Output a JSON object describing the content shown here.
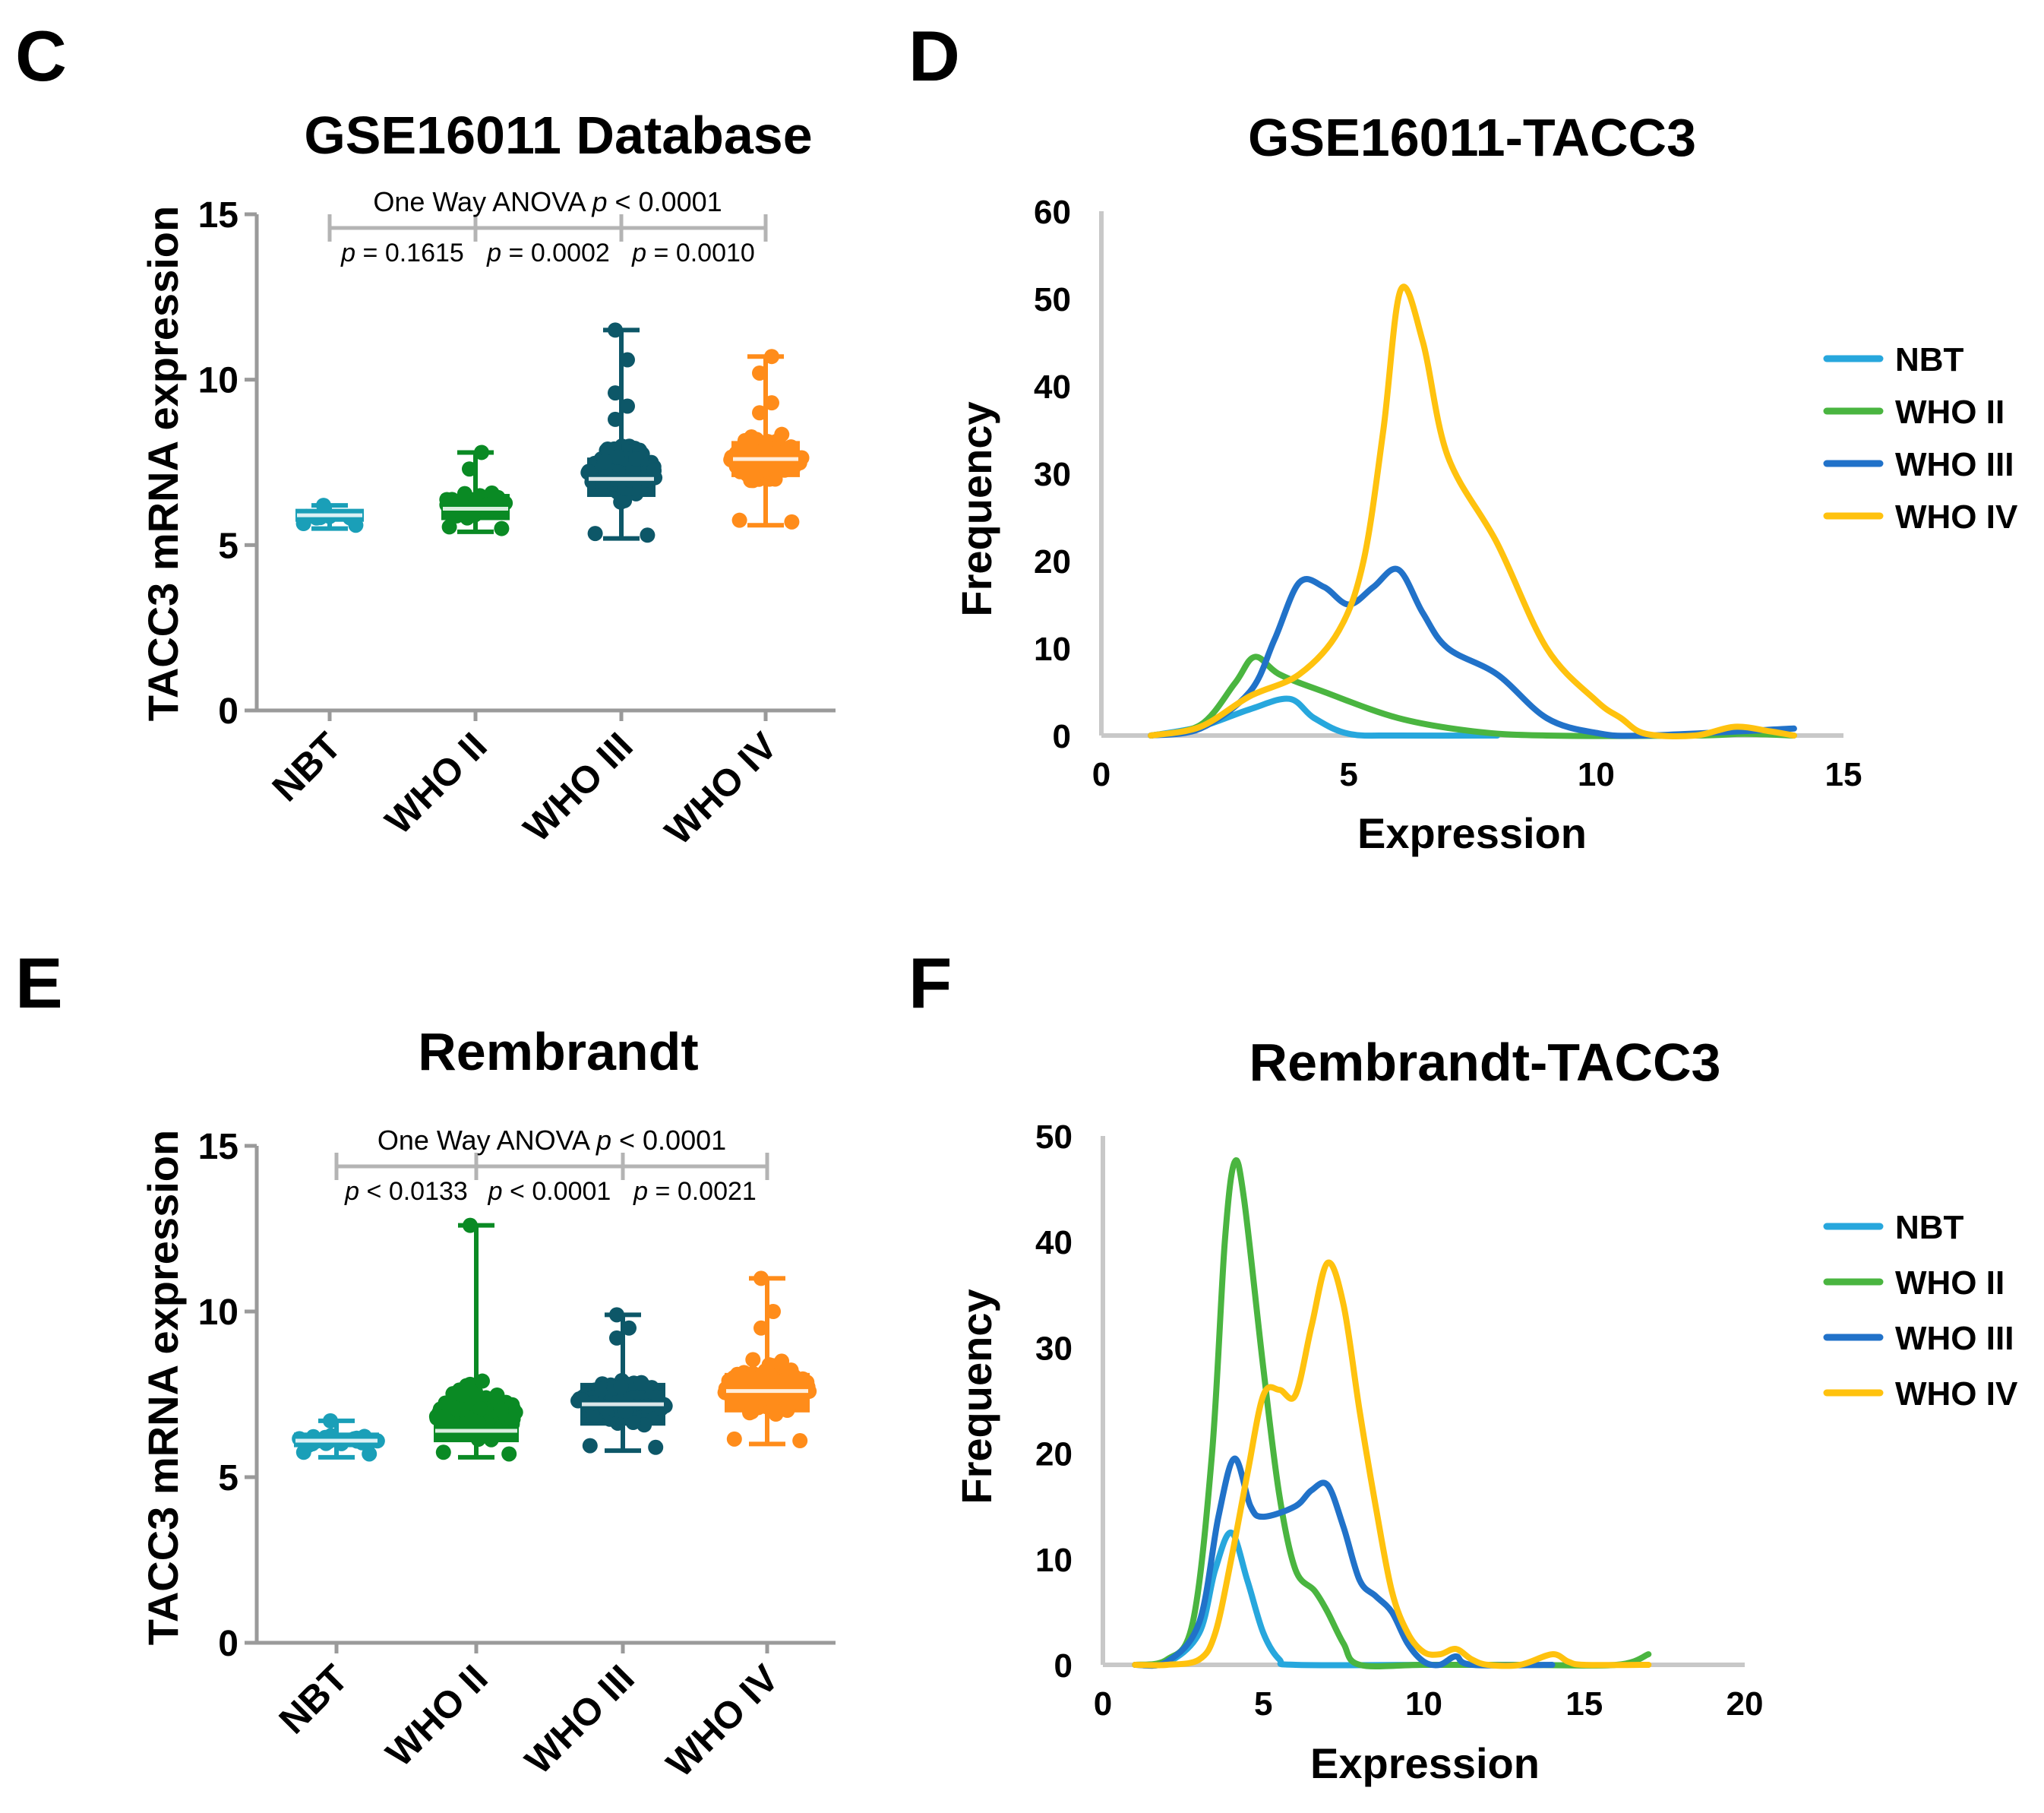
{
  "colors": {
    "axis": "#9a9a9a",
    "text": "#000000",
    "nbt_box": "#1a9fb8",
    "who2_box": "#0a8a24",
    "who3_box": "#0d5768",
    "who4_box": "#ff8c1a",
    "nbt_line": "#27a7dd",
    "who2_line": "#4ab540",
    "who3_line": "#2172c9",
    "who4_line": "#ffc20e"
  },
  "panel_labels": [
    "C",
    "D",
    "E",
    "F"
  ],
  "chart_data": [
    {
      "type": "box",
      "panel": "C",
      "title": "GSE16011 Database",
      "ylabel": "TACC3 mRNA expression",
      "ylim": [
        0,
        15
      ],
      "yticks": [
        "0",
        "5",
        "10",
        "15"
      ],
      "categories": [
        "NBT",
        "WHO II",
        "WHO III",
        "WHO IV"
      ],
      "anova": {
        "prefix": "One Way ANOVA ",
        "p": "p",
        "suffix": " < 0.0001"
      },
      "pairwise": [
        {
          "p": "p",
          "text": " = 0.1615"
        },
        {
          "p": "p",
          "text": " = 0.0002"
        },
        {
          "p": "p",
          "text": " = 0.0010"
        }
      ],
      "series": [
        {
          "name": "NBT",
          "color": "#1a9fb8",
          "min": 5.5,
          "q1": 5.75,
          "median": 5.9,
          "q3": 6.05,
          "max": 6.2,
          "n": 8,
          "max_outliers": [
            6.2
          ]
        },
        {
          "name": "WHO II",
          "color": "#0a8a24",
          "min": 5.4,
          "q1": 5.8,
          "median": 6.1,
          "q3": 6.5,
          "max": 7.8,
          "n": 40,
          "max_outliers": [
            7.3,
            7.8
          ]
        },
        {
          "name": "WHO III",
          "color": "#0d5768",
          "min": 5.2,
          "q1": 6.5,
          "median": 7.0,
          "q3": 7.6,
          "max": 11.5,
          "n": 120,
          "max_outliers": [
            8.8,
            9.2,
            9.6,
            10.6,
            11.5
          ]
        },
        {
          "name": "WHO IV",
          "color": "#ff8c1a",
          "min": 5.6,
          "q1": 7.1,
          "median": 7.6,
          "q3": 8.1,
          "max": 10.7,
          "n": 140,
          "max_outliers": [
            9.0,
            9.3,
            10.2,
            10.7
          ]
        }
      ]
    },
    {
      "type": "line",
      "panel": "D",
      "title": "GSE16011-TACC3",
      "xlabel": "Expression",
      "ylabel": "Frequency",
      "xlim": [
        0,
        15
      ],
      "ylim": [
        0,
        60
      ],
      "xticks": [
        "0",
        "5",
        "10",
        "15"
      ],
      "yticks": [
        "0",
        "10",
        "20",
        "30",
        "40",
        "50",
        "60"
      ],
      "legend_position": "right",
      "series": [
        {
          "name": "NBT",
          "color": "#27a7dd",
          "points": [
            [
              1,
              0
            ],
            [
              2,
              1
            ],
            [
              3,
              3
            ],
            [
              3.8,
              4.2
            ],
            [
              4.3,
              2
            ],
            [
              5,
              0.2
            ],
            [
              6,
              0
            ],
            [
              8,
              0
            ]
          ]
        },
        {
          "name": "WHO II",
          "color": "#4ab540",
          "points": [
            [
              1,
              0
            ],
            [
              2,
              1.2
            ],
            [
              2.7,
              6
            ],
            [
              3.1,
              9
            ],
            [
              3.6,
              7
            ],
            [
              4.5,
              5
            ],
            [
              6,
              2
            ],
            [
              7.5,
              0.5
            ],
            [
              9,
              0
            ],
            [
              12,
              0
            ],
            [
              13,
              0.2
            ],
            [
              14,
              0
            ]
          ]
        },
        {
          "name": "WHO III",
          "color": "#2172c9",
          "points": [
            [
              1,
              0
            ],
            [
              2,
              0.8
            ],
            [
              3,
              5
            ],
            [
              3.5,
              11
            ],
            [
              4,
              17.5
            ],
            [
              4.5,
              17
            ],
            [
              5,
              15
            ],
            [
              5.5,
              17
            ],
            [
              6,
              19
            ],
            [
              6.5,
              14
            ],
            [
              7,
              10
            ],
            [
              8,
              7
            ],
            [
              9,
              2
            ],
            [
              10,
              0.3
            ],
            [
              11,
              0
            ],
            [
              14,
              0.8
            ]
          ]
        },
        {
          "name": "WHO IV",
          "color": "#ffc20e",
          "points": [
            [
              1,
              0
            ],
            [
              2,
              1
            ],
            [
              3,
              4.5
            ],
            [
              4,
              7
            ],
            [
              4.8,
              12
            ],
            [
              5.3,
              20
            ],
            [
              5.7,
              35
            ],
            [
              6.05,
              51
            ],
            [
              6.5,
              45
            ],
            [
              7,
              32
            ],
            [
              8,
              22
            ],
            [
              9,
              10
            ],
            [
              10,
              4
            ],
            [
              10.5,
              2
            ],
            [
              11,
              0.2
            ],
            [
              12,
              0
            ],
            [
              12.8,
              1
            ],
            [
              13.5,
              0.5
            ],
            [
              14,
              0
            ]
          ]
        }
      ]
    },
    {
      "type": "box",
      "panel": "E",
      "title": "Rembrandt",
      "ylabel": "TACC3 mRNA expression",
      "ylim": [
        0,
        15
      ],
      "yticks": [
        "0",
        "5",
        "10",
        "15"
      ],
      "categories": [
        "NBT",
        "WHO II",
        "WHO III",
        "WHO IV"
      ],
      "anova": {
        "prefix": "One Way ANOVA ",
        "p": "p",
        "suffix": " < 0.0001"
      },
      "pairwise": [
        {
          "p": "p",
          "text": " < 0.0133"
        },
        {
          "p": "p",
          "text": " < 0.0001"
        },
        {
          "p": "p",
          "text": " = 0.0021"
        }
      ],
      "series": [
        {
          "name": "NBT",
          "color": "#1a9fb8",
          "min": 5.6,
          "q1": 5.95,
          "median": 6.1,
          "q3": 6.3,
          "max": 6.7,
          "n": 25,
          "max_outliers": [
            6.7
          ]
        },
        {
          "name": "WHO II",
          "color": "#0a8a24",
          "min": 5.6,
          "q1": 6.1,
          "median": 6.4,
          "q3": 6.8,
          "max": 12.6,
          "n": 110,
          "max_outliers": [
            7.8,
            7.9,
            12.6
          ]
        },
        {
          "name": "WHO III",
          "color": "#0d5768",
          "min": 5.8,
          "q1": 6.6,
          "median": 7.2,
          "q3": 7.8,
          "max": 9.9,
          "n": 120,
          "max_outliers": [
            9.2,
            9.5,
            9.9
          ]
        },
        {
          "name": "WHO IV",
          "color": "#ff8c1a",
          "min": 6.0,
          "q1": 7.0,
          "median": 7.6,
          "q3": 8.1,
          "max": 11.0,
          "n": 140,
          "max_outliers": [
            9.5,
            10.0,
            11.0
          ]
        }
      ]
    },
    {
      "type": "line",
      "panel": "F",
      "title": "Rembrandt-TACC3",
      "xlabel": "Expression",
      "ylabel": "Frequency",
      "xlim": [
        0,
        20
      ],
      "ylim": [
        0,
        50
      ],
      "xticks": [
        "0",
        "5",
        "10",
        "15",
        "20"
      ],
      "yticks": [
        "0",
        "10",
        "20",
        "30",
        "40",
        "50"
      ],
      "legend_position": "right",
      "series": [
        {
          "name": "NBT",
          "color": "#27a7dd",
          "points": [
            [
              1,
              0
            ],
            [
              2,
              0.2
            ],
            [
              3,
              3
            ],
            [
              3.5,
              9
            ],
            [
              4,
              12.5
            ],
            [
              4.5,
              8
            ],
            [
              5,
              3
            ],
            [
              5.5,
              0.5
            ],
            [
              6,
              0
            ],
            [
              10,
              0
            ]
          ]
        },
        {
          "name": "WHO II",
          "color": "#4ab540",
          "points": [
            [
              1,
              0
            ],
            [
              2,
              0.5
            ],
            [
              2.8,
              4
            ],
            [
              3.4,
              20
            ],
            [
              3.8,
              40
            ],
            [
              4.1,
              47.5
            ],
            [
              4.4,
              44
            ],
            [
              5,
              28
            ],
            [
              5.5,
              16
            ],
            [
              6,
              9
            ],
            [
              6.6,
              7
            ],
            [
              7,
              5
            ],
            [
              7.5,
              2
            ],
            [
              8,
              0
            ],
            [
              10,
              0
            ],
            [
              13,
              0
            ],
            [
              16,
              0
            ],
            [
              17,
              1
            ]
          ]
        },
        {
          "name": "WHO III",
          "color": "#2172c9",
          "points": [
            [
              1,
              0
            ],
            [
              2,
              0.3
            ],
            [
              3,
              4
            ],
            [
              3.6,
              14
            ],
            [
              4.1,
              19.5
            ],
            [
              4.6,
              15
            ],
            [
              5,
              14
            ],
            [
              6,
              15
            ],
            [
              6.5,
              16.5
            ],
            [
              7,
              17
            ],
            [
              7.5,
              13
            ],
            [
              8,
              8
            ],
            [
              8.5,
              6.5
            ],
            [
              9,
              5
            ],
            [
              9.5,
              2
            ],
            [
              10,
              0.3
            ],
            [
              10.5,
              0
            ],
            [
              11,
              0.8
            ],
            [
              11.5,
              0
            ],
            [
              14,
              0
            ]
          ]
        },
        {
          "name": "WHO IV",
          "color": "#ffc20e",
          "points": [
            [
              1,
              0
            ],
            [
              2,
              0
            ],
            [
              3,
              0.5
            ],
            [
              3.5,
              3
            ],
            [
              4,
              10
            ],
            [
              4.5,
              18
            ],
            [
              5,
              25.5
            ],
            [
              5.5,
              26
            ],
            [
              6,
              25.5
            ],
            [
              6.5,
              32
            ],
            [
              7,
              38
            ],
            [
              7.5,
              34
            ],
            [
              8,
              24
            ],
            [
              8.5,
              15
            ],
            [
              9,
              7
            ],
            [
              9.5,
              3
            ],
            [
              10,
              1.2
            ],
            [
              10.5,
              1
            ],
            [
              11,
              1.5
            ],
            [
              11.5,
              0.5
            ],
            [
              12,
              0
            ],
            [
              13,
              0
            ],
            [
              14,
              1
            ],
            [
              14.5,
              0.3
            ],
            [
              15,
              0
            ],
            [
              17,
              0
            ]
          ]
        }
      ]
    }
  ]
}
